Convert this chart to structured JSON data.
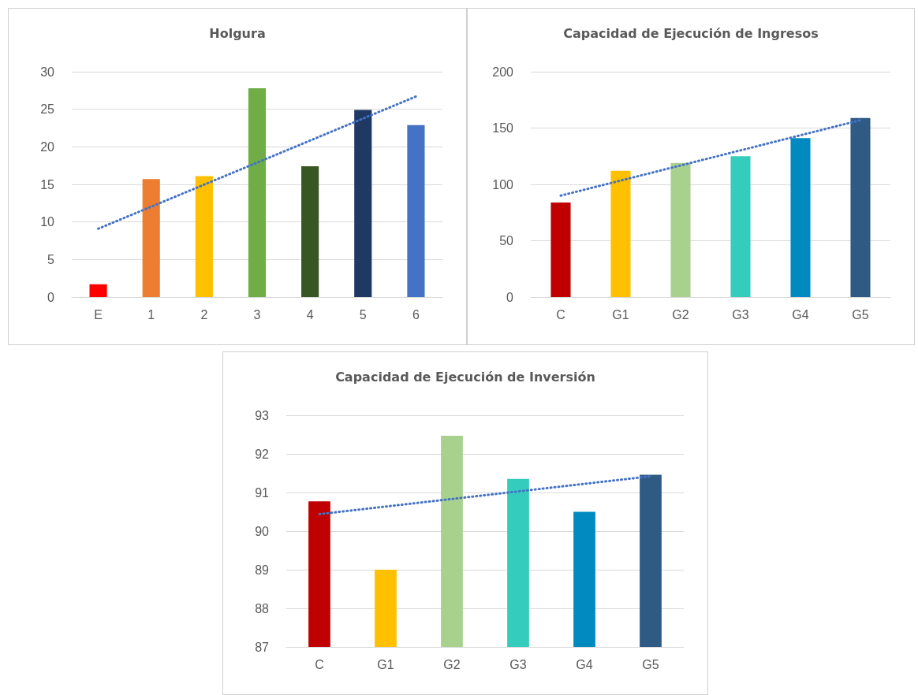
{
  "chart_data": [
    {
      "type": "bar",
      "title": "Holgura",
      "categories": [
        "E",
        "1",
        "2",
        "3",
        "4",
        "5",
        "6"
      ],
      "grid": "y",
      "ylim": [
        0,
        30
      ],
      "yticks": [
        0,
        5,
        10,
        15,
        20,
        25,
        30
      ],
      "series": [
        {
          "values": [
            1.7,
            15.7,
            16.1,
            27.8,
            17.4,
            24.9,
            22.9
          ],
          "colors": [
            "#ff0000",
            "#ed7d31",
            "#ffc000",
            "#70ad47",
            "#375623",
            "#203864",
            "#4472c4"
          ]
        },
        {
          "type": "line",
          "x": [
            "E",
            "6"
          ],
          "values": [
            9.1,
            26.7
          ],
          "color": "#4472c4",
          "marker": "none",
          "line_style": "dotted"
        }
      ]
    },
    {
      "type": "bar",
      "title": "Capacidad de Ejecución de Ingresos",
      "categories": [
        "C",
        "G1",
        "G2",
        "G3",
        "G4",
        "G5"
      ],
      "grid": "y",
      "ylim": [
        0,
        200
      ],
      "yticks": [
        0,
        50,
        100,
        150,
        200
      ],
      "series": [
        {
          "values": [
            84,
            112,
            119,
            125,
            141,
            159
          ],
          "colors": [
            "#c00000",
            "#ffc000",
            "#a9d18e",
            "#33ccbd",
            "#008abf",
            "#2e5a84"
          ]
        },
        {
          "type": "line",
          "x": [
            "C",
            "G5"
          ],
          "values": [
            90,
            157
          ],
          "color": "#4472c4",
          "marker": "none",
          "line_style": "dotted"
        }
      ]
    },
    {
      "type": "bar",
      "title": "Capacidad de Ejecución de Inversión",
      "categories": [
        "C",
        "G1",
        "G2",
        "G3",
        "G4",
        "G5"
      ],
      "grid": "y",
      "ylim": [
        87,
        93
      ],
      "yticks": [
        87,
        88,
        89,
        90,
        91,
        92,
        93
      ],
      "series": [
        {
          "values": [
            90.77,
            89.0,
            92.47,
            91.35,
            90.5,
            91.46
          ],
          "colors": [
            "#c00000",
            "#ffc000",
            "#a9d18e",
            "#33ccbd",
            "#008abf",
            "#2e5a84"
          ]
        },
        {
          "type": "line",
          "x": [
            "C",
            "G5"
          ],
          "values": [
            90.44,
            91.42
          ],
          "color": "#4472c4",
          "marker": "none",
          "line_style": "dotted"
        }
      ]
    }
  ]
}
